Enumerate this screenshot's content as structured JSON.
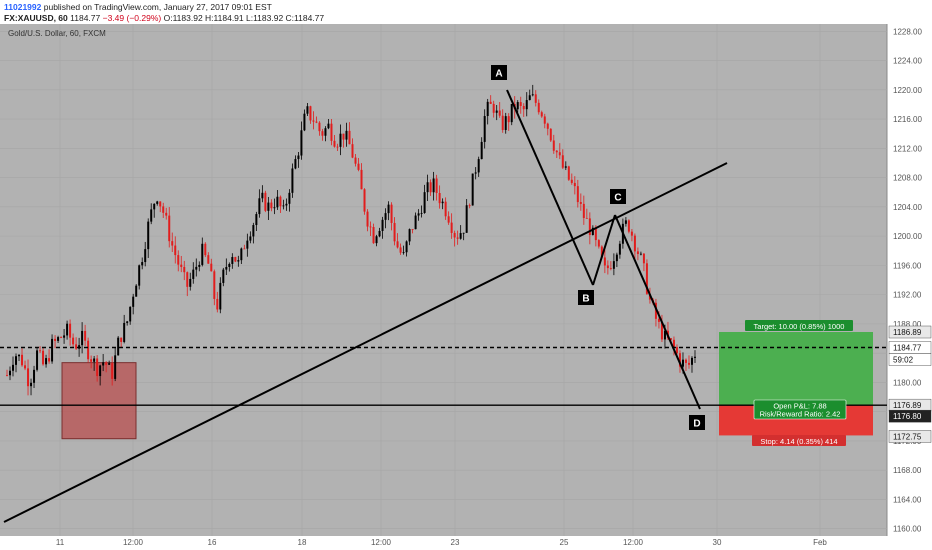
{
  "header": {
    "user": "11021992",
    "published": "published on TradingView.com, January 27, 2017 09:01 EST",
    "symbol_line_prefix": "FX:XAUUSD, 60",
    "last": "1184.77",
    "change": "−3.49 (−0.29%)",
    "ohlc": "O:1183.92 H:1184.91 L:1183.92 C:1184.77"
  },
  "chart_data": {
    "type": "candlestick",
    "title": "Gold/U.S. Dollar, 60, FXCM",
    "ylim": [
      1159,
      1229
    ],
    "y_ticks": [
      "1160.00",
      "1164.00",
      "1168.00",
      "1172.00",
      "1176.00",
      "1180.00",
      "1184.00",
      "1188.00",
      "1192.00",
      "1196.00",
      "1200.00",
      "1204.00",
      "1208.00",
      "1212.00",
      "1216.00",
      "1220.00",
      "1224.00",
      "1228.00"
    ],
    "x_ticks": [
      "11",
      "12:00",
      "16",
      "18",
      "12:00",
      "23",
      "25",
      "12:00",
      "30",
      "Feb"
    ],
    "price_path": [
      1181,
      1184,
      1183,
      1180,
      1184,
      1182,
      1185,
      1186,
      1187,
      1185,
      1186,
      1184,
      1182,
      1183,
      1181,
      1186,
      1188,
      1193,
      1197,
      1202,
      1206,
      1203,
      1199,
      1196,
      1193,
      1195,
      1198,
      1196,
      1190,
      1195,
      1198,
      1196,
      1200,
      1202,
      1205,
      1204,
      1205,
      1203,
      1208,
      1212,
      1217,
      1216,
      1214,
      1215,
      1213,
      1214,
      1212,
      1208,
      1203,
      1200,
      1202,
      1204,
      1199,
      1197,
      1201,
      1203,
      1206,
      1207,
      1205,
      1203,
      1200,
      1201,
      1206,
      1211,
      1217,
      1218,
      1215,
      1216,
      1218,
      1217,
      1219,
      1218,
      1216,
      1213,
      1210,
      1208,
      1206,
      1203,
      1201,
      1198,
      1195,
      1197,
      1200,
      1202,
      1199,
      1196,
      1191,
      1188,
      1186,
      1185,
      1183,
      1182,
      1184
    ],
    "labels": {
      "current_price": "1184.77",
      "countdown": "59:02",
      "target_price": "1186.89",
      "entry_price": "1176.89",
      "entry_price_2": "1176.80",
      "stop_price": "1172.75"
    },
    "annotations": {
      "points": [
        "A",
        "B",
        "C",
        "D"
      ],
      "target": "Target: 10.00 (0.85%) 1000",
      "open_pl": "Open P&L: 7.88",
      "risk_reward": "Risk/Reward Ratio: 2.42",
      "stop": "Stop: 4.14 (0.35%) 414"
    },
    "colors": {
      "bull": "#000000",
      "bear": "#e11d1d",
      "background": "#b2b2b2",
      "target_zone": "#4caf50",
      "stop_zone": "#e53935",
      "box": "#b75b5b"
    }
  }
}
